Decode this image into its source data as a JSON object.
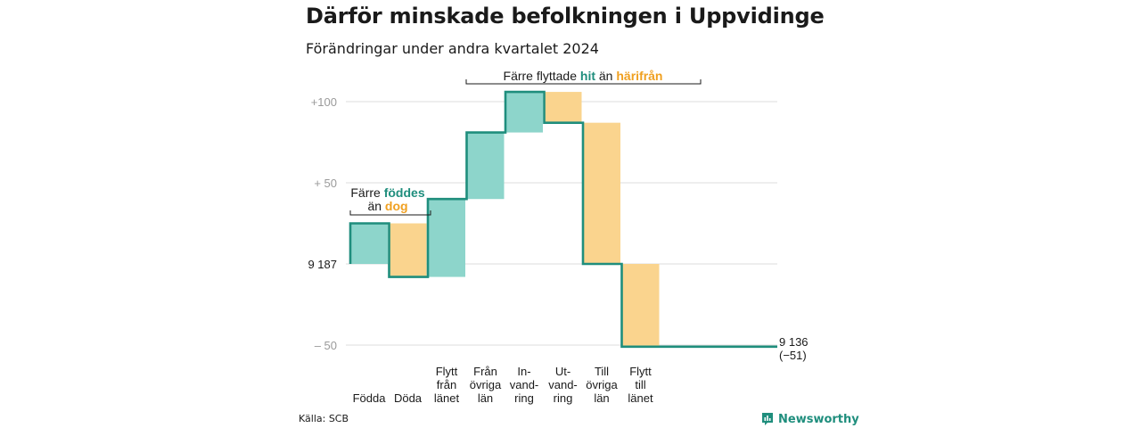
{
  "header": {
    "title": "Därför minskade befolkningen i Uppvidinge",
    "subtitle": "Förändringar under andra kvartalet 2024"
  },
  "footer": {
    "source": "Källa: SCB",
    "brand": "Newsworthy"
  },
  "colors": {
    "increase": "#8dd5cb",
    "decrease": "#fad48e",
    "line": "#1f8e7d",
    "grid": "#dddddd",
    "tick_text": "#9a9a9a",
    "teal_text": "#1f8e7d",
    "orange_text": "#f0a020"
  },
  "chart_data": {
    "type": "waterfall",
    "start": {
      "value": 9187,
      "label": "9 187"
    },
    "end": {
      "value": 9136,
      "label": "9 136",
      "change_label": "(−51)"
    },
    "y_ticks": [
      {
        "value": 100,
        "label": "+100"
      },
      {
        "value": 50,
        "label": "+  50"
      },
      {
        "value": -50,
        "label": "–  50"
      }
    ],
    "ylim": [
      -50,
      106
    ],
    "steps": [
      {
        "label_lines": [
          "Födda"
        ],
        "change": 25,
        "kind": "increase"
      },
      {
        "label_lines": [
          "Döda"
        ],
        "change": -33,
        "kind": "decrease"
      },
      {
        "label_lines": [
          "Flytt",
          "från",
          "länet"
        ],
        "change": 48,
        "kind": "increase"
      },
      {
        "label_lines": [
          "Från",
          "övriga",
          "län"
        ],
        "change": 41,
        "kind": "increase"
      },
      {
        "label_lines": [
          "In-",
          "vand-",
          "ring"
        ],
        "change": 25,
        "kind": "increase"
      },
      {
        "label_lines": [
          "Ut-",
          "vand-",
          "ring"
        ],
        "change": -19,
        "kind": "decrease"
      },
      {
        "label_lines": [
          "Till",
          "övriga",
          "län"
        ],
        "change": -87,
        "kind": "decrease"
      },
      {
        "label_lines": [
          "Flytt",
          "till",
          "länet"
        ],
        "change": -51,
        "kind": "decrease"
      }
    ],
    "annotations": [
      {
        "parts": [
          {
            "text": "Färre ",
            "color": "dark"
          },
          {
            "text": "föddes",
            "color": "teal"
          }
        ],
        "parts2": [
          {
            "text": "än ",
            "color": "dark"
          },
          {
            "text": "dog",
            "color": "orange"
          }
        ]
      },
      {
        "parts": [
          {
            "text": "Färre flyttade ",
            "color": "dark"
          },
          {
            "text": "hit",
            "color": "teal"
          },
          {
            "text": " än ",
            "color": "dark"
          },
          {
            "text": "härifrån",
            "color": "orange"
          }
        ]
      }
    ]
  }
}
